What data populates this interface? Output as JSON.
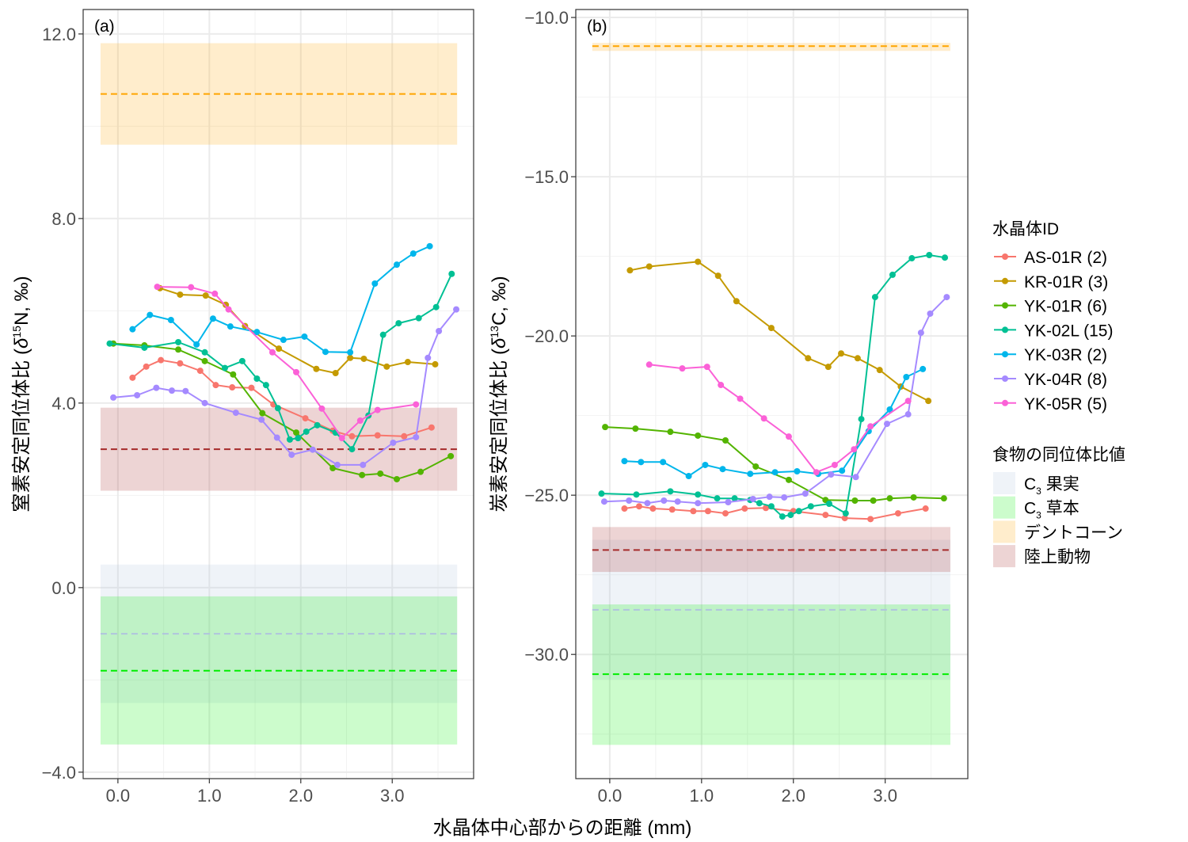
{
  "chart_data": [
    {
      "type": "line",
      "panel_label": "(a)",
      "ylabel_parts": {
        "prefix": "窒素安定同位体比 (",
        "delta": "δ",
        "sup": "15",
        "suffix": "N, ‰)"
      },
      "xlim": [
        -0.38,
        3.89
      ],
      "ylim": [
        -4.14,
        12.53
      ],
      "xticks": [
        {
          "v": 0,
          "label": "0.0"
        },
        {
          "v": 1,
          "label": "1.0"
        },
        {
          "v": 2,
          "label": "2.0"
        },
        {
          "v": 3,
          "label": "3.0"
        }
      ],
      "yticks": [
        {
          "v": 12,
          "label": "12.0"
        },
        {
          "v": 8,
          "label": "8.0"
        },
        {
          "v": 4,
          "label": "4.0"
        },
        {
          "v": 0,
          "label": "0.0"
        },
        {
          "v": -4,
          "label": "−4.0"
        }
      ],
      "xminor": [
        -0.5,
        0.5,
        1.5,
        2.5,
        3.5
      ],
      "yminor": [
        10,
        6,
        2,
        -2
      ],
      "bands": [
        {
          "key": "fruit",
          "ymin": -2.5,
          "ymax": 0.5,
          "mean": -1.0,
          "xmin": -0.19,
          "xmax": 3.71
        },
        {
          "key": "grass",
          "ymin": -3.4,
          "ymax": -0.19,
          "mean": -1.8,
          "xmin": -0.19,
          "xmax": 3.71
        },
        {
          "key": "corn",
          "ymin": 9.6,
          "ymax": 11.8,
          "mean": 10.7,
          "xmin": -0.19,
          "xmax": 3.71
        },
        {
          "key": "land",
          "ymin": 2.1,
          "ymax": 3.9,
          "mean": 3.0,
          "xmin": -0.19,
          "xmax": 3.71
        }
      ],
      "series": [
        {
          "name": "AS-01R (2)",
          "x": [
            0.16,
            0.31,
            0.47,
            0.68,
            0.9,
            1.07,
            1.25,
            1.46,
            1.7,
            2.05,
            2.35,
            2.56,
            2.84,
            3.13,
            3.43
          ],
          "y": [
            4.55,
            4.79,
            4.93,
            4.86,
            4.7,
            4.39,
            4.34,
            4.33,
            3.97,
            3.67,
            3.4,
            3.28,
            3.3,
            3.28,
            3.47
          ]
        },
        {
          "name": "KR-01R (3)",
          "x": [
            0.46,
            0.68,
            0.96,
            1.18,
            1.39,
            1.76,
            2.17,
            2.38,
            2.54,
            2.69,
            2.94,
            3.17,
            3.47
          ],
          "y": [
            6.49,
            6.35,
            6.33,
            6.13,
            5.67,
            5.18,
            4.74,
            4.65,
            4.98,
            4.96,
            4.79,
            4.89,
            4.84
          ]
        },
        {
          "name": "YK-01R (6)",
          "x": [
            -0.05,
            0.29,
            0.66,
            0.95,
            1.26,
            1.58,
            1.95,
            2.35,
            2.67,
            2.87,
            3.05,
            3.31,
            3.64
          ],
          "y": [
            5.29,
            5.25,
            5.16,
            4.91,
            4.62,
            3.78,
            3.36,
            2.59,
            2.44,
            2.47,
            2.35,
            2.51,
            2.85
          ]
        },
        {
          "name": "YK-02L (15)",
          "x": [
            -0.09,
            0.29,
            0.66,
            0.95,
            1.17,
            1.36,
            1.52,
            1.62,
            1.75,
            1.88,
            1.97,
            2.06,
            2.18,
            2.38,
            2.56,
            2.74,
            2.9,
            3.07,
            3.29,
            3.48,
            3.65
          ],
          "y": [
            5.29,
            5.2,
            5.32,
            5.1,
            4.76,
            4.91,
            4.53,
            4.39,
            3.89,
            3.21,
            3.24,
            3.38,
            3.52,
            3.36,
            3.0,
            3.73,
            5.48,
            5.73,
            5.84,
            6.08,
            6.8
          ]
        },
        {
          "name": "YK-03R (2)",
          "x": [
            0.16,
            0.35,
            0.58,
            0.86,
            1.04,
            1.23,
            1.52,
            1.81,
            2.04,
            2.27,
            2.54,
            2.81,
            3.05,
            3.23,
            3.41
          ],
          "y": [
            5.6,
            5.91,
            5.8,
            5.27,
            5.83,
            5.66,
            5.54,
            5.37,
            5.44,
            5.11,
            5.1,
            6.59,
            7.0,
            7.24,
            7.4
          ]
        },
        {
          "name": "YK-04R (8)",
          "x": [
            -0.05,
            0.21,
            0.42,
            0.59,
            0.74,
            0.95,
            1.29,
            1.57,
            1.74,
            1.9,
            2.13,
            2.4,
            2.68,
            3.01,
            3.26,
            3.39,
            3.51,
            3.7
          ],
          "y": [
            4.12,
            4.17,
            4.33,
            4.27,
            4.26,
            4.0,
            3.79,
            3.64,
            3.25,
            2.88,
            2.99,
            2.66,
            2.66,
            3.14,
            3.26,
            4.98,
            5.56,
            6.03
          ]
        },
        {
          "name": "YK-05R (5)",
          "x": [
            0.43,
            0.8,
            1.06,
            1.21,
            1.69,
            1.95,
            2.23,
            2.45,
            2.65,
            2.84,
            3.26
          ],
          "y": [
            6.52,
            6.51,
            6.37,
            6.03,
            5.1,
            4.67,
            3.88,
            3.24,
            3.62,
            3.85,
            3.97
          ]
        }
      ]
    },
    {
      "type": "line",
      "panel_label": "(b)",
      "ylabel_parts": {
        "prefix": "炭素安定同位体比 (",
        "delta": "δ",
        "sup": "13",
        "suffix": "C, ‰)"
      },
      "xlim": [
        -0.37,
        3.9
      ],
      "ylim": [
        -33.9,
        -9.75
      ],
      "xticks": [
        {
          "v": 0,
          "label": "0.0"
        },
        {
          "v": 1,
          "label": "1.0"
        },
        {
          "v": 2,
          "label": "2.0"
        },
        {
          "v": 3,
          "label": "3.0"
        }
      ],
      "yticks": [
        {
          "v": -10,
          "label": "−10.0"
        },
        {
          "v": -15,
          "label": "−15.0"
        },
        {
          "v": -20,
          "label": "−20.0"
        },
        {
          "v": -25,
          "label": "−25.0"
        },
        {
          "v": -30,
          "label": "−30.0"
        }
      ],
      "xminor": [
        -0.5,
        0.5,
        1.5,
        2.5,
        3.5
      ],
      "yminor": [
        -12.5,
        -17.5,
        -22.5,
        -27.5,
        -32.5
      ],
      "bands": [
        {
          "key": "fruit",
          "ymin": -30.8,
          "ymax": -26.4,
          "mean": -28.6,
          "xmin": -0.19,
          "xmax": 3.71
        },
        {
          "key": "grass",
          "ymin": -32.84,
          "ymax": -28.43,
          "mean": -30.62,
          "xmin": -0.19,
          "xmax": 3.71
        },
        {
          "key": "corn",
          "ymin": -11.05,
          "ymax": -10.8,
          "mean": -10.9,
          "xmin": -0.19,
          "xmax": 3.71
        },
        {
          "key": "land",
          "ymin": -27.41,
          "ymax": -26.0,
          "mean": -26.72,
          "xmin": -0.19,
          "xmax": 3.71
        }
      ],
      "series": [
        {
          "name": "AS-01R (2)",
          "x": [
            0.16,
            0.32,
            0.47,
            0.68,
            0.91,
            1.07,
            1.26,
            1.47,
            1.7,
            2.0,
            2.35,
            2.56,
            2.84,
            3.14,
            3.44
          ],
          "y": [
            -25.42,
            -25.35,
            -25.42,
            -25.45,
            -25.5,
            -25.5,
            -25.57,
            -25.42,
            -25.4,
            -25.5,
            -25.62,
            -25.72,
            -25.75,
            -25.57,
            -25.42
          ]
        },
        {
          "name": "KR-01R (3)",
          "x": [
            0.22,
            0.43,
            0.96,
            1.18,
            1.38,
            1.76,
            2.16,
            2.38,
            2.52,
            2.7,
            2.94,
            3.17,
            3.47
          ],
          "y": [
            -17.94,
            -17.82,
            -17.67,
            -18.11,
            -18.91,
            -19.75,
            -20.7,
            -20.97,
            -20.55,
            -20.7,
            -21.07,
            -21.59,
            -22.04
          ]
        },
        {
          "name": "YK-01R (6)",
          "x": [
            -0.05,
            0.28,
            0.66,
            0.96,
            1.26,
            1.59,
            1.95,
            2.35,
            2.67,
            2.87,
            3.05,
            3.31,
            3.64
          ],
          "y": [
            -22.86,
            -22.91,
            -23.01,
            -23.13,
            -23.28,
            -24.1,
            -24.52,
            -25.15,
            -25.17,
            -25.17,
            -25.1,
            -25.07,
            -25.1
          ]
        },
        {
          "name": "YK-02L (15)",
          "x": [
            -0.09,
            0.29,
            0.66,
            0.96,
            1.17,
            1.36,
            1.53,
            1.63,
            1.76,
            1.88,
            1.97,
            2.06,
            2.19,
            2.39,
            2.57,
            2.74,
            2.89,
            3.08,
            3.29,
            3.48,
            3.65
          ],
          "y": [
            -24.95,
            -24.98,
            -24.88,
            -24.98,
            -25.1,
            -25.1,
            -25.15,
            -25.25,
            -25.35,
            -25.67,
            -25.62,
            -25.5,
            -25.35,
            -25.27,
            -25.57,
            -22.61,
            -18.78,
            -18.08,
            -17.56,
            -17.46,
            -17.54
          ]
        },
        {
          "name": "YK-03R (2)",
          "x": [
            0.16,
            0.34,
            0.58,
            0.86,
            1.04,
            1.23,
            1.53,
            1.8,
            2.04,
            2.27,
            2.53,
            2.82,
            3.05,
            3.23,
            3.41
          ],
          "y": [
            -23.93,
            -23.96,
            -23.96,
            -24.4,
            -24.05,
            -24.18,
            -24.33,
            -24.28,
            -24.25,
            -24.33,
            -24.23,
            -22.99,
            -22.31,
            -21.29,
            -21.04
          ]
        },
        {
          "name": "YK-04R (8)",
          "x": [
            -0.06,
            0.21,
            0.41,
            0.59,
            0.74,
            0.96,
            1.29,
            1.56,
            1.74,
            1.9,
            2.13,
            2.41,
            2.68,
            3.02,
            3.25,
            3.39,
            3.49,
            3.67
          ],
          "y": [
            -25.2,
            -25.17,
            -25.25,
            -25.17,
            -25.2,
            -25.25,
            -25.22,
            -25.12,
            -25.05,
            -25.07,
            -24.95,
            -24.35,
            -24.43,
            -22.76,
            -22.46,
            -19.9,
            -19.3,
            -18.78
          ]
        },
        {
          "name": "YK-05R (5)",
          "x": [
            0.43,
            0.79,
            1.06,
            1.21,
            1.42,
            1.68,
            1.95,
            2.25,
            2.45,
            2.66,
            2.84,
            3.25
          ],
          "y": [
            -20.9,
            -21.02,
            -20.97,
            -21.54,
            -21.97,
            -22.59,
            -23.16,
            -24.28,
            -24.05,
            -23.56,
            -22.84,
            -22.04
          ]
        }
      ]
    }
  ],
  "xlabel": "水晶体中心部からの距離 (mm)",
  "series_colors": [
    "#F8766D",
    "#C49A00",
    "#53B400",
    "#00C094",
    "#00B6EB",
    "#A58AFF",
    "#FB61D7"
  ],
  "legend_series_title": "水晶体ID",
  "legend_food_title": "食物の同位体比値",
  "food": {
    "fruit": {
      "label_pre": "C",
      "label_sub": "3",
      "label_post": " 果実",
      "color": "#B0C4DE"
    },
    "grass": {
      "label_pre": "C",
      "label_sub": "3",
      "label_post": " 草本",
      "color": "#00EE00"
    },
    "corn": {
      "label_pre": "デントコーン",
      "label_sub": "",
      "label_post": "",
      "color": "#FFA500"
    },
    "land": {
      "label_pre": "陸上動物",
      "label_sub": "",
      "label_post": "",
      "color": "#A52A2A"
    }
  },
  "food_order": [
    "fruit",
    "grass",
    "corn",
    "land"
  ]
}
